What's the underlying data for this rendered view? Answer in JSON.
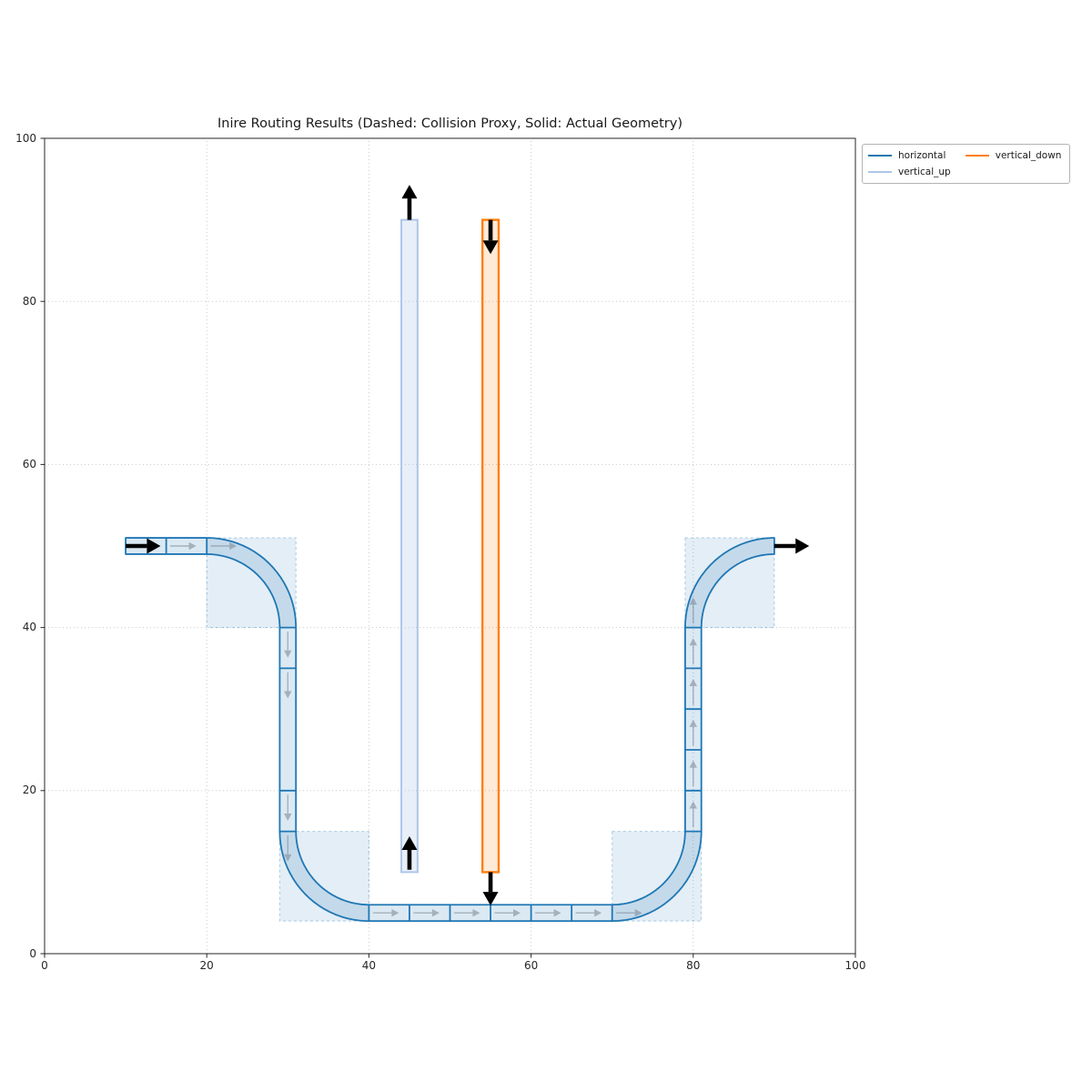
{
  "chart_data": {
    "type": "diagram",
    "title": "Inire Routing Results (Dashed: Collision Proxy, Solid: Actual Geometry)",
    "xlim": [
      0,
      100
    ],
    "ylim": [
      0,
      100
    ],
    "xticks": [
      0,
      20,
      40,
      60,
      80,
      100
    ],
    "yticks": [
      0,
      20,
      40,
      60,
      80,
      100
    ],
    "grid": {
      "ticks": [
        20,
        40,
        60,
        80
      ],
      "style": "dotted"
    },
    "legend": {
      "position": "top-right",
      "entries": [
        {
          "label": "horizontal",
          "color": "#1f77b4"
        },
        {
          "label": "vertical_up",
          "color": "#aec7e8"
        },
        {
          "label": "vertical_down",
          "color": "#ff7f0e"
        }
      ]
    },
    "collision_proxies": [
      {
        "x": 20,
        "y": 40,
        "w": 11,
        "h": 11
      },
      {
        "x": 29,
        "y": 4,
        "w": 11,
        "h": 11
      },
      {
        "x": 70,
        "y": 4,
        "w": 11,
        "h": 11
      },
      {
        "x": 79,
        "y": 40,
        "w": 11,
        "h": 11
      }
    ],
    "paths": [
      {
        "name": "horizontal",
        "color": "#1f77b4",
        "fill": "rgba(31,119,180,0.16)",
        "half_width": 1,
        "segments": [
          {
            "type": "line",
            "from": [
              10,
              50
            ],
            "to": [
              20,
              50
            ],
            "dividers": [
              15
            ]
          },
          {
            "type": "arc",
            "center": [
              20,
              40
            ],
            "r": 10,
            "a0": 90,
            "a1": 0
          },
          {
            "type": "line",
            "from": [
              30,
              40
            ],
            "to": [
              30,
              15
            ],
            "dividers": [
              35,
              20
            ]
          },
          {
            "type": "arc",
            "center": [
              40,
              15
            ],
            "r": 10,
            "a0": 180,
            "a1": 270
          },
          {
            "type": "line",
            "from": [
              40,
              5
            ],
            "to": [
              70,
              5
            ],
            "dividers": [
              45,
              50,
              55,
              60,
              65
            ]
          },
          {
            "type": "arc",
            "center": [
              70,
              15
            ],
            "r": 10,
            "a0": 270,
            "a1": 360
          },
          {
            "type": "line",
            "from": [
              80,
              15
            ],
            "to": [
              80,
              40
            ],
            "dividers": [
              20,
              25,
              30,
              35
            ]
          },
          {
            "type": "arc",
            "center": [
              90,
              40
            ],
            "r": 10,
            "a0": 180,
            "a1": 90
          }
        ],
        "start_arrow": {
          "from": [
            10,
            50
          ],
          "to": [
            14.3,
            50
          ]
        },
        "end_arrow": {
          "from": [
            90,
            50
          ],
          "to": [
            94.3,
            50
          ]
        }
      },
      {
        "name": "vertical_up",
        "color": "#aec7e8",
        "fill": "rgba(174,199,232,0.28)",
        "rect": {
          "x": 44,
          "y": 10,
          "w": 2,
          "h": 80
        },
        "start_arrow": {
          "from": [
            45,
            10.3
          ],
          "to": [
            45,
            14.4
          ]
        },
        "end_arrow": {
          "from": [
            45,
            90
          ],
          "to": [
            45,
            94.3
          ]
        }
      },
      {
        "name": "vertical_down",
        "color": "#ff7f0e",
        "fill": "rgba(255,127,14,0.16)",
        "rect": {
          "x": 54,
          "y": 10,
          "w": 2,
          "h": 80
        },
        "start_arrow": {
          "from": [
            55,
            90
          ],
          "to": [
            55,
            85.8
          ]
        },
        "end_arrow": {
          "from": [
            55,
            10
          ],
          "to": [
            55,
            5.9
          ]
        }
      }
    ]
  }
}
